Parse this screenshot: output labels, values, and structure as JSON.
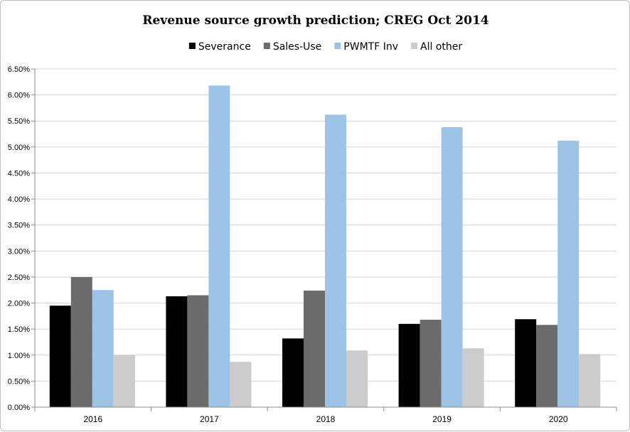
{
  "chart_data": {
    "type": "bar",
    "title": "Revenue source growth prediction; CREG Oct 2014",
    "xlabel": "",
    "ylabel": "",
    "categories": [
      "2016",
      "2017",
      "2018",
      "2019",
      "2020"
    ],
    "series": [
      {
        "name": "Severance",
        "color": "#000000",
        "values": [
          1.95,
          2.13,
          1.32,
          1.6,
          1.69
        ]
      },
      {
        "name": "Sales-Use",
        "color": "#6b6b6b",
        "values": [
          2.5,
          2.15,
          2.24,
          1.68,
          1.58
        ]
      },
      {
        "name": "PWMTF Inv",
        "color": "#9dc3e6",
        "values": [
          2.25,
          6.18,
          5.62,
          5.38,
          5.12
        ]
      },
      {
        "name": "All other",
        "color": "#cccccc",
        "values": [
          1.0,
          0.87,
          1.09,
          1.13,
          1.02
        ]
      }
    ],
    "ylim": [
      0,
      6.5
    ],
    "ytick_step": 0.5,
    "ytick_labels": [
      "0.00%",
      "0.50%",
      "1.00%",
      "1.50%",
      "2.00%",
      "2.50%",
      "3.00%",
      "3.50%",
      "4.00%",
      "4.50%",
      "5.00%",
      "5.50%",
      "6.00%",
      "6.50%"
    ],
    "grid": true,
    "legend_position": "top"
  }
}
